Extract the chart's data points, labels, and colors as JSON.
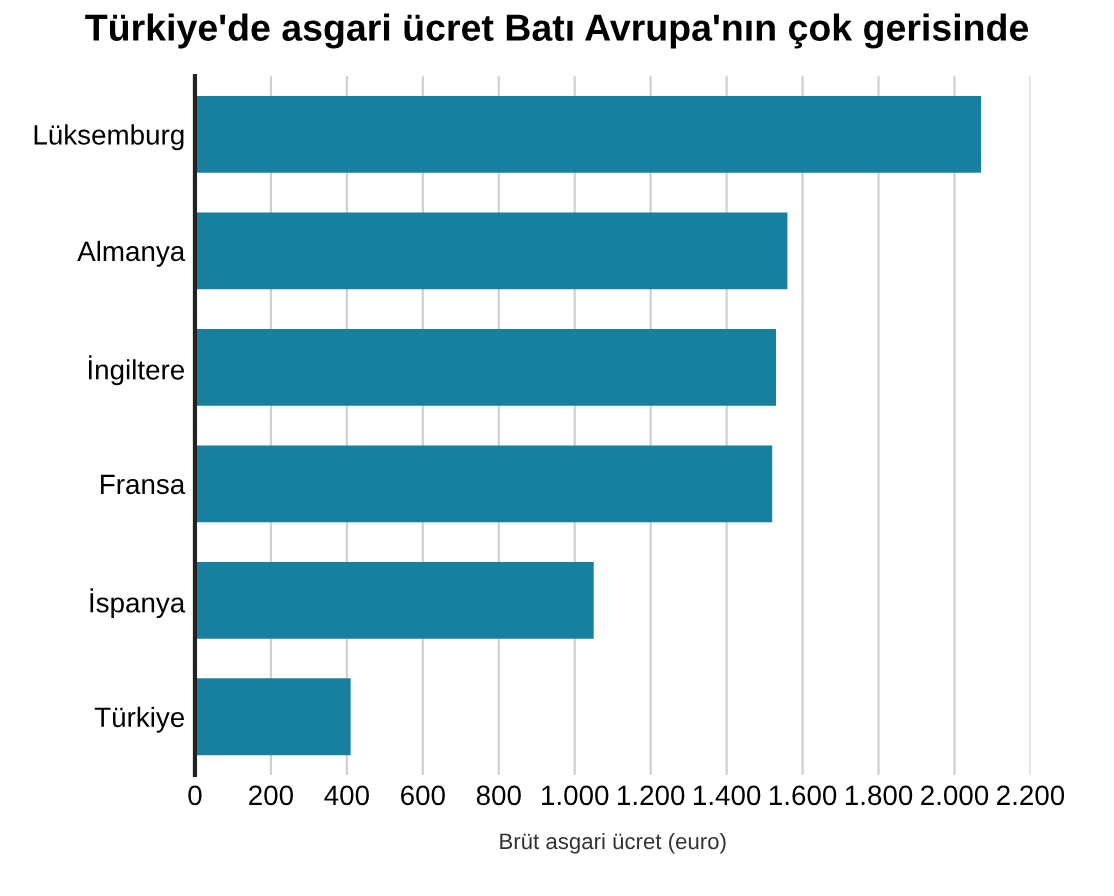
{
  "chart_data": {
    "type": "bar",
    "orientation": "horizontal",
    "title": "Türkiye'de asgari ücret Batı Avrupa'nın çok gerisinde",
    "xlabel": "Brüt asgari ücret (euro)",
    "categories": [
      "Lüksemburg",
      "Almanya",
      "İngiltere",
      "Fransa",
      "İspanya",
      "Türkiye"
    ],
    "values": [
      2070,
      1560,
      1530,
      1520,
      1050,
      410
    ],
    "color": "#17809f",
    "xlim": [
      0,
      2200
    ],
    "xticks": [
      0,
      200,
      400,
      600,
      800,
      {
        "value": 1000,
        "label": "1.000"
      },
      {
        "value": 1200,
        "label": "1.200"
      },
      {
        "value": 1400,
        "label": "1.400"
      },
      {
        "value": 1600,
        "label": "1.600"
      },
      {
        "value": 1800,
        "label": "1.800"
      },
      {
        "value": 2000,
        "label": "2.000"
      },
      {
        "value": 2200,
        "label": "2.200"
      }
    ],
    "grid": "x",
    "legend": false
  }
}
